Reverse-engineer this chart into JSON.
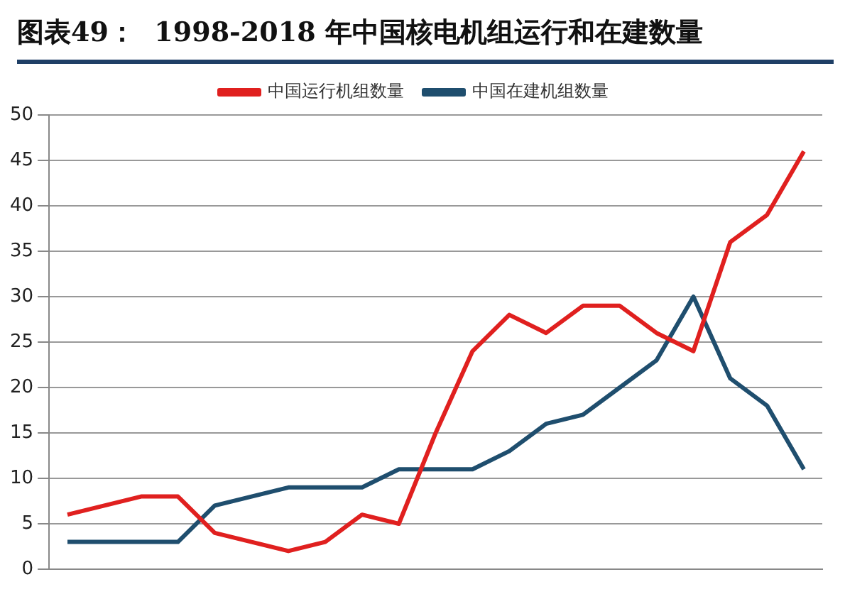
{
  "chart_data": {
    "type": "line",
    "title": "图表49：  1998-2018 年中国核电机组运行和在建数量",
    "categories": [
      null,
      null,
      null,
      null,
      null,
      null,
      null,
      null,
      null,
      null,
      null,
      null,
      null,
      null,
      null,
      null,
      null,
      null,
      null,
      null,
      null
    ],
    "series": [
      {
        "name": "中国运行机组数量",
        "color": "#e0201f",
        "values": [
          6,
          7,
          8,
          8,
          4,
          3,
          2,
          3,
          6,
          5,
          15,
          24,
          28,
          26,
          29,
          29,
          26,
          24,
          36,
          39,
          46
        ]
      },
      {
        "name": "中国在建机组数量",
        "color": "#1f4e6e",
        "values": [
          3,
          3,
          3,
          3,
          7,
          8,
          9,
          9,
          9,
          11,
          11,
          11,
          13,
          16,
          17,
          20,
          23,
          30,
          21,
          18,
          11
        ]
      }
    ],
    "ylim": [
      0,
      50
    ],
    "yticks": [
      0,
      5,
      10,
      15,
      20,
      25,
      30,
      35,
      40,
      45,
      50
    ],
    "grid": "y",
    "legend": "top",
    "tick_labels": "y",
    "marker": "none",
    "line_style": "solid"
  }
}
